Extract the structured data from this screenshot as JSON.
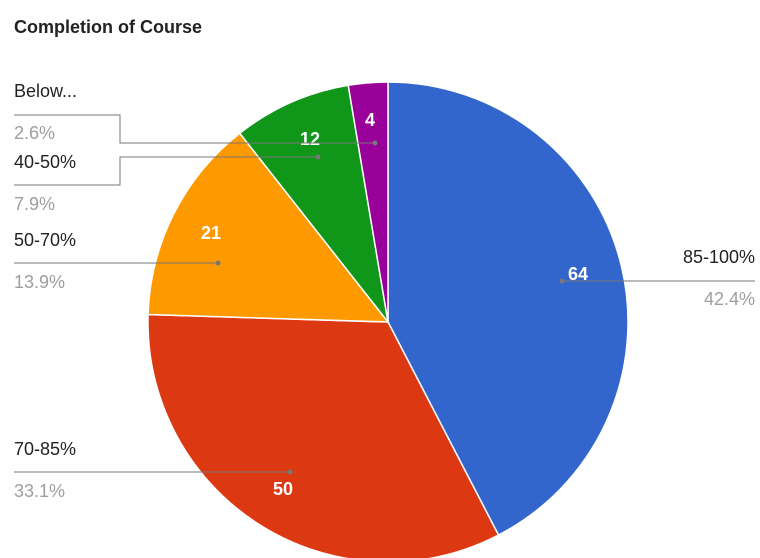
{
  "chart_data": {
    "type": "pie",
    "title": "Completion of Course",
    "categories": [
      "85-100%",
      "70-85%",
      "50-70%",
      "40-50%",
      "Below..."
    ],
    "values": [
      64,
      50,
      21,
      12,
      4
    ],
    "percent_labels": [
      "42.4%",
      "33.1%",
      "13.9%",
      "7.9%",
      "2.6%"
    ],
    "colors": [
      "#3366cc",
      "#dc3912",
      "#ff9900",
      "#109618",
      "#990099"
    ]
  }
}
